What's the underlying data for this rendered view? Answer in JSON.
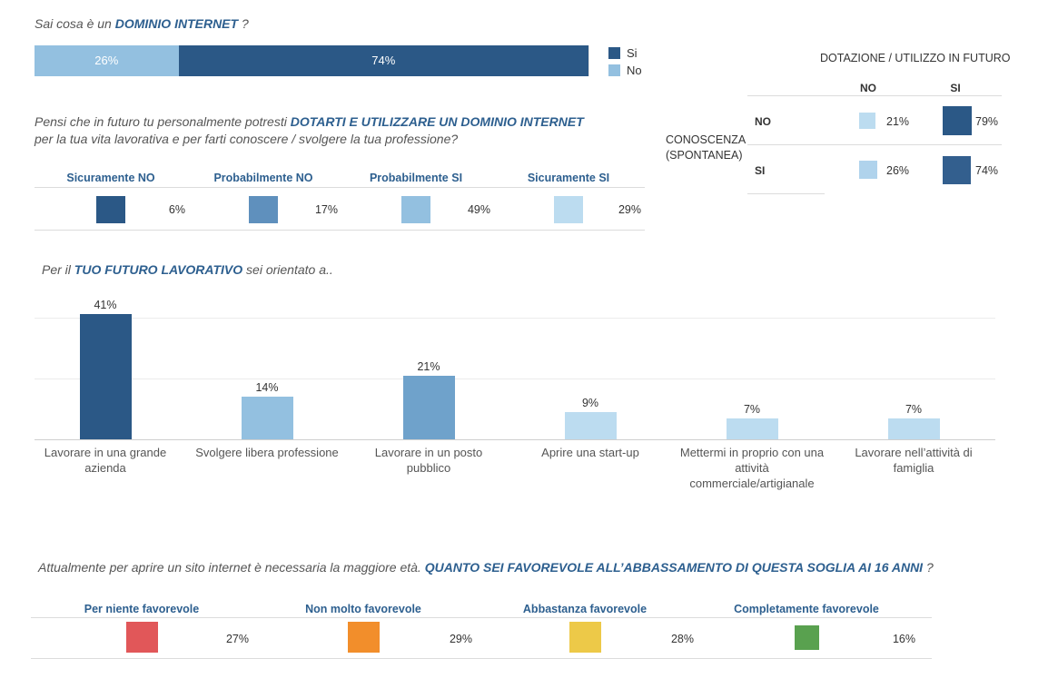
{
  "q1": {
    "text_plain": "Sai cosa è un ",
    "text_bold": "DOMINIO INTERNET",
    "text_end": " ?",
    "chart_data": {
      "type": "bar",
      "orientation": "horizontal-stacked",
      "categories": [
        "No",
        "Si"
      ],
      "values": [
        26,
        74
      ],
      "labels": [
        "26%",
        "74%"
      ],
      "colors": [
        "#93c0e0",
        "#2b5886"
      ]
    },
    "legend": [
      {
        "label": "Si",
        "color": "#2b5886"
      },
      {
        "label": "No",
        "color": "#93c0e0"
      }
    ]
  },
  "q2": {
    "line1_plain": "Pensi che in futuro tu personalmente potresti ",
    "line1_bold": "DOTARTI E UTILIZZARE UN DOMINIO INTERNET",
    "line2": "per la tua vita lavorativa e per farti conoscere / svolgere la tua professione?",
    "chart_data": {
      "type": "table",
      "categories": [
        "Sicuramente NO",
        "Probabilmente NO",
        "Probabilmente SI",
        "Sicuramente SI"
      ],
      "values": [
        6,
        17,
        49,
        29
      ],
      "labels": [
        "6%",
        "17%",
        "49%",
        "29%"
      ],
      "colors": [
        "#2b5886",
        "#5f90bd",
        "#93c0e0",
        "#bcdcf0"
      ]
    }
  },
  "crosstab": {
    "title": "DOTAZIONE / UTILIZZO IN FUTURO",
    "row_header_line1": "CONOSCENZA",
    "row_header_line2": "(SPONTANEA)",
    "chart_data": {
      "type": "table",
      "columns": [
        "NO",
        "SI"
      ],
      "rows": [
        {
          "label": "NO",
          "values": [
            21,
            79
          ],
          "labels": [
            "21%",
            "79%"
          ],
          "colors": [
            "#bcdcf0",
            "#2b5886"
          ]
        },
        {
          "label": "SI",
          "values": [
            26,
            74
          ],
          "labels": [
            "26%",
            "74%"
          ],
          "colors": [
            "#b0d3ec",
            "#335f8e"
          ]
        }
      ]
    }
  },
  "q3": {
    "text_plain": "Per il ",
    "text_bold": "TUO FUTURO LAVORATIVO",
    "text_end": " sei orientato a..",
    "chart_data": {
      "type": "bar",
      "categories": [
        "Lavorare in una grande azienda",
        "Svolgere libera professione",
        "Lavorare in un posto pubblico",
        "Aprire una start-up",
        "Mettermi in proprio con una attività commerciale/artigianale",
        "Lavorare nell’attività di famiglia"
      ],
      "category_lines": [
        [
          "Lavorare in una grande",
          "azienda"
        ],
        [
          "Svolgere libera professione"
        ],
        [
          "Lavorare in un posto pubblico"
        ],
        [
          "Aprire una start-up"
        ],
        [
          "Mettermi in proprio con una",
          "attività",
          "commerciale/artigianale"
        ],
        [
          "Lavorare nell’attività di",
          "famiglia"
        ]
      ],
      "values": [
        41,
        14,
        21,
        9,
        7,
        7
      ],
      "labels": [
        "41%",
        "14%",
        "21%",
        "9%",
        "7%",
        "7%"
      ],
      "colors": [
        "#2b5886",
        "#93c0e0",
        "#6fa2cb",
        "#bcdcf0",
        "#bcdcf0",
        "#bcdcf0"
      ],
      "ylim": [
        0,
        45
      ],
      "gridlines": [
        0,
        20,
        40
      ]
    }
  },
  "q4": {
    "text_plain": "Attualmente per aprire un sito internet è necessaria la maggiore età. ",
    "text_bold": "QUANTO SEI FAVOREVOLE ALL’ABBASSAMENTO DI QUESTA SOGLIA AI 16 ANNI",
    "text_end": " ?",
    "chart_data": {
      "type": "table",
      "categories": [
        "Per niente favorevole",
        "Non molto favorevole",
        "Abbastanza favorevole",
        "Completamente favorevole"
      ],
      "values": [
        27,
        29,
        28,
        16
      ],
      "labels": [
        "27%",
        "29%",
        "28%",
        "16%"
      ],
      "colors": [
        "#e15759",
        "#f28e2b",
        "#edc948",
        "#59a14f"
      ]
    }
  }
}
